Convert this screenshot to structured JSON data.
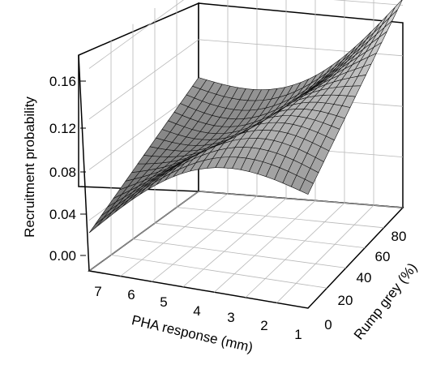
{
  "chart_data": {
    "type": "surface",
    "title": "",
    "zlabel": "Recruitment probability",
    "xlabel": "PHA response (mm)",
    "ylabel": "Rump grey (%)",
    "x_ticks": [
      "7",
      "6",
      "5",
      "4",
      "3",
      "2",
      "1"
    ],
    "y_ticks": [
      "0",
      "20",
      "40",
      "60",
      "80"
    ],
    "z_ticks": [
      "0.00",
      "0.04",
      "0.08",
      "0.12",
      "0.16"
    ],
    "x_range": [
      1,
      7.5
    ],
    "y_range": [
      0,
      90
    ],
    "z_range": [
      0,
      0.17
    ],
    "corner_values": [
      {
        "pha": 7.5,
        "rump_grey": 0,
        "probability": 0.03
      },
      {
        "pha": 7.5,
        "rump_grey": 90,
        "probability": 0.09
      },
      {
        "pha": 1,
        "rump_grey": 90,
        "probability": 0.165
      },
      {
        "pha": 1,
        "rump_grey": 0,
        "probability": 0.09
      }
    ],
    "grid": true,
    "surface_color": "#8a8a8a"
  }
}
